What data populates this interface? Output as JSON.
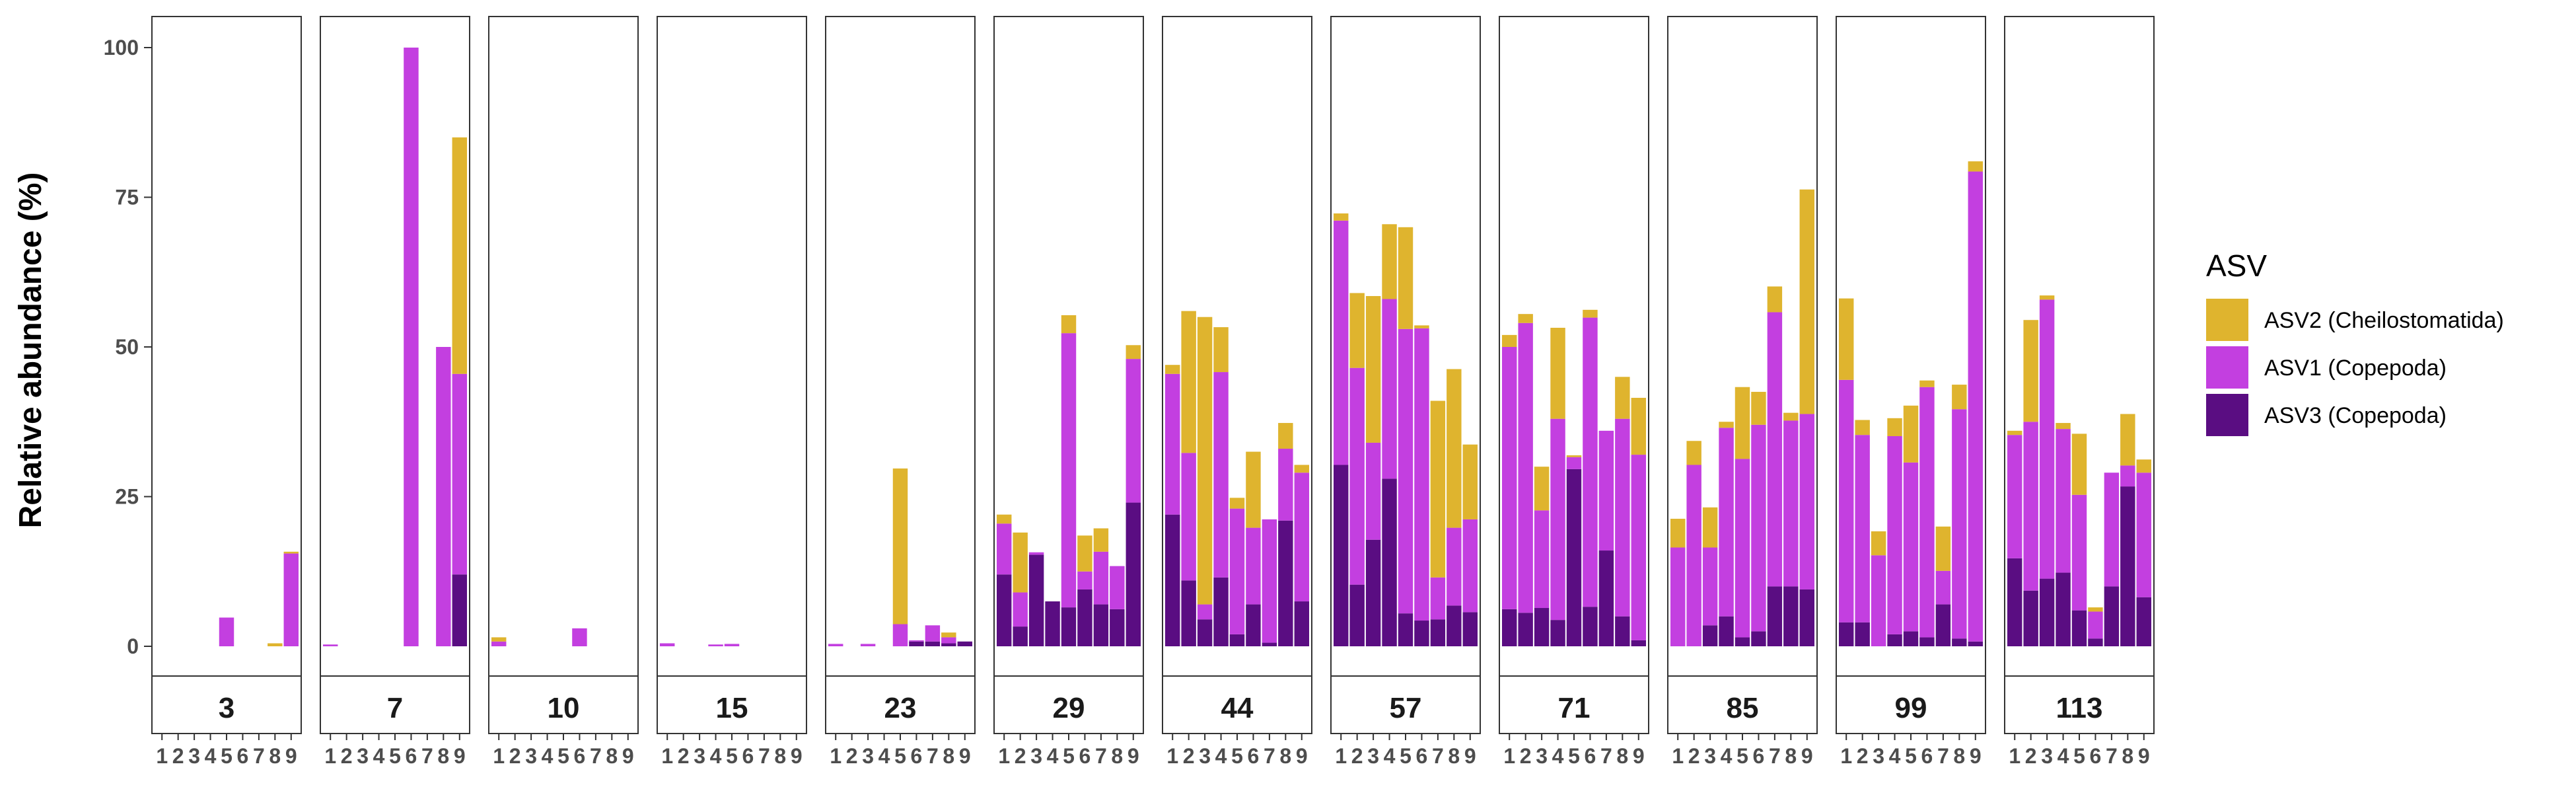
{
  "chart_data": {
    "type": "bar",
    "stacked": true,
    "ylabel": "Relative abundance (%)",
    "xlabel": "",
    "ylim": [
      0,
      105
    ],
    "yticks": [
      0,
      25,
      50,
      75,
      100
    ],
    "categories": [
      "1",
      "2",
      "3",
      "4",
      "5",
      "6",
      "7",
      "8",
      "9"
    ],
    "grid": false,
    "legend": {
      "title": "ASV",
      "placement": "right",
      "entries": [
        {
          "name": "ASV2 (Cheilostomatida)",
          "color": "#DFB42E"
        },
        {
          "name": "ASV1 (Copepoda)",
          "color": "#C33FE0"
        },
        {
          "name": "ASV3 (Copepoda)",
          "color": "#5A0D82"
        }
      ]
    },
    "panels": [
      {
        "label": "3",
        "ASV3": [
          0,
          0,
          0,
          0,
          0,
          0,
          0,
          0,
          0
        ],
        "ASV1": [
          0,
          0,
          0,
          0,
          4.8,
          0,
          0,
          0,
          15.5
        ],
        "ASV2": [
          0,
          0,
          0,
          0,
          0,
          0,
          0,
          0.5,
          0.3
        ]
      },
      {
        "label": "7",
        "ASV3": [
          0,
          0,
          0,
          0,
          0,
          0,
          0,
          0,
          12
        ],
        "ASV1": [
          0.3,
          0,
          0,
          0,
          0,
          100,
          0,
          50,
          33.5
        ],
        "ASV2": [
          0,
          0,
          0,
          0,
          0,
          0,
          0,
          0,
          39.5
        ]
      },
      {
        "label": "10",
        "ASV3": [
          0,
          0,
          0,
          0,
          0,
          0,
          0,
          0,
          0
        ],
        "ASV1": [
          0.8,
          0,
          0,
          0,
          0,
          3,
          0,
          0,
          0
        ],
        "ASV2": [
          0.7,
          0,
          0,
          0,
          0,
          0,
          0,
          0,
          0
        ]
      },
      {
        "label": "15",
        "ASV3": [
          0,
          0,
          0,
          0,
          0,
          0,
          0,
          0,
          0
        ],
        "ASV1": [
          0.5,
          0,
          0,
          0.3,
          0.4,
          0,
          0,
          0,
          0
        ],
        "ASV2": [
          0,
          0,
          0,
          0,
          0,
          0,
          0,
          0,
          0
        ]
      },
      {
        "label": "23",
        "ASV3": [
          0,
          0,
          0,
          0,
          0,
          0.8,
          0.8,
          0.5,
          0.8
        ],
        "ASV1": [
          0.4,
          0,
          0.4,
          0,
          3.7,
          0.2,
          2.7,
          1.0,
          0
        ],
        "ASV2": [
          0,
          0,
          0,
          0,
          26.0,
          0,
          0,
          0.8,
          0
        ]
      },
      {
        "label": "29",
        "ASV3": [
          12,
          3.3,
          15.3,
          7.5,
          6.5,
          9.5,
          7,
          6.2,
          24
        ],
        "ASV1": [
          8.5,
          5.7,
          0.4,
          0,
          45.8,
          3,
          8.8,
          7.2,
          24
        ],
        "ASV2": [
          1.5,
          10,
          0,
          0,
          3,
          6,
          3.9,
          0,
          2.3
        ]
      },
      {
        "label": "44",
        "ASV3": [
          22,
          11,
          4.5,
          11.5,
          2,
          7,
          0.6,
          21,
          7.5
        ],
        "ASV1": [
          23.5,
          21.3,
          2.5,
          34.3,
          21,
          12.8,
          20.6,
          12,
          21.5
        ],
        "ASV2": [
          1.5,
          23.7,
          48,
          7.5,
          1.8,
          12.7,
          0,
          4.3,
          1.3
        ]
      },
      {
        "label": "57",
        "ASV3": [
          30.3,
          10.3,
          17.8,
          28,
          5.5,
          4.3,
          4.5,
          6.8,
          5.7
        ],
        "ASV1": [
          40.8,
          36.2,
          16.2,
          30,
          47.5,
          48.8,
          7,
          13,
          15.5
        ],
        "ASV2": [
          1.2,
          12.5,
          24.5,
          12.5,
          17,
          0.5,
          29.5,
          26.5,
          12.5
        ]
      },
      {
        "label": "71",
        "ASV3": [
          6.2,
          5.6,
          6.4,
          4.4,
          29.6,
          6.6,
          16,
          5,
          1
        ],
        "ASV1": [
          43.8,
          48.4,
          16.3,
          33.6,
          2,
          48.3,
          20,
          33,
          31
        ],
        "ASV2": [
          2,
          1.5,
          7.3,
          15.2,
          0.3,
          1.3,
          0,
          7,
          9.5
        ]
      },
      {
        "label": "85",
        "ASV3": [
          0,
          0,
          3.5,
          5,
          1.5,
          2.5,
          10,
          10,
          9.5
        ],
        "ASV1": [
          16.5,
          30.3,
          13,
          31.5,
          29.8,
          34.5,
          45.8,
          27.7,
          29.3
        ],
        "ASV2": [
          4.8,
          4,
          6.7,
          1,
          12,
          5.5,
          4.3,
          1.3,
          37.5
        ]
      },
      {
        "label": "99",
        "ASV3": [
          4,
          4,
          0,
          2,
          2.5,
          1.5,
          7,
          1.3,
          0.8
        ],
        "ASV1": [
          40.5,
          31.3,
          15.2,
          33.1,
          28.2,
          41.8,
          5.6,
          38.3,
          78.5
        ],
        "ASV2": [
          13.6,
          2.5,
          4,
          3,
          9.5,
          1.1,
          7.4,
          4.1,
          1.7
        ]
      },
      {
        "label": "113",
        "ASV3": [
          14.7,
          9.3,
          11.3,
          12.3,
          6,
          1.3,
          10,
          26.7,
          8.2
        ],
        "ASV1": [
          20.6,
          28.2,
          46.6,
          24,
          19.3,
          4.5,
          19,
          3.5,
          20.8
        ],
        "ASV2": [
          0.7,
          17,
          0.7,
          1,
          10.2,
          0.7,
          0,
          8.6,
          2.2
        ]
      }
    ]
  }
}
